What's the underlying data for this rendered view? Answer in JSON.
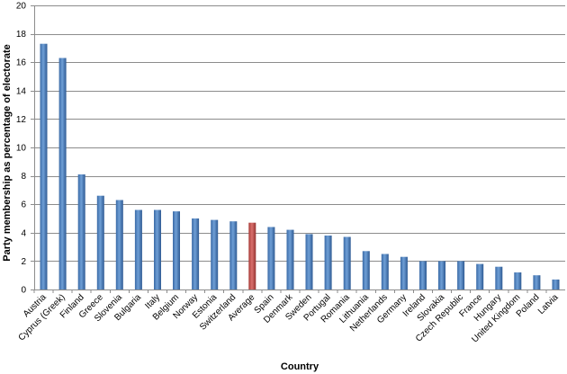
{
  "chart_data": {
    "type": "bar",
    "title": "",
    "xlabel": "Country",
    "ylabel": "Party membership as percentage of electorate",
    "ylim": [
      0,
      20
    ],
    "yticks": [
      0,
      2,
      4,
      6,
      8,
      10,
      12,
      14,
      16,
      18,
      20
    ],
    "grid": true,
    "legend": "none",
    "categories": [
      "Austria",
      "Cyprus (Greek)",
      "Finland",
      "Greece",
      "Slovenia",
      "Bulgaria",
      "Italy",
      "Belgium",
      "Norway",
      "Estonia",
      "Switzerland",
      "Average",
      "Spain",
      "Denmark",
      "Sweden",
      "Portugal",
      "Romania",
      "Lithuania",
      "Netherlands",
      "Germany",
      "Ireland",
      "Slovakia",
      "Czech Republic",
      "France",
      "Hungary",
      "United Kingdom",
      "Poland",
      "Latvia"
    ],
    "values": [
      17.3,
      16.3,
      8.1,
      6.6,
      6.3,
      5.6,
      5.6,
      5.5,
      5.0,
      4.9,
      4.8,
      4.7,
      4.4,
      4.2,
      3.9,
      3.8,
      3.7,
      2.7,
      2.5,
      2.3,
      2.0,
      2.0,
      2.0,
      1.8,
      1.6,
      1.2,
      1.0,
      0.7
    ],
    "colors": {
      "bar": "#4a7ebb",
      "highlight": "#c0504d",
      "highlight_category": "Average"
    }
  }
}
